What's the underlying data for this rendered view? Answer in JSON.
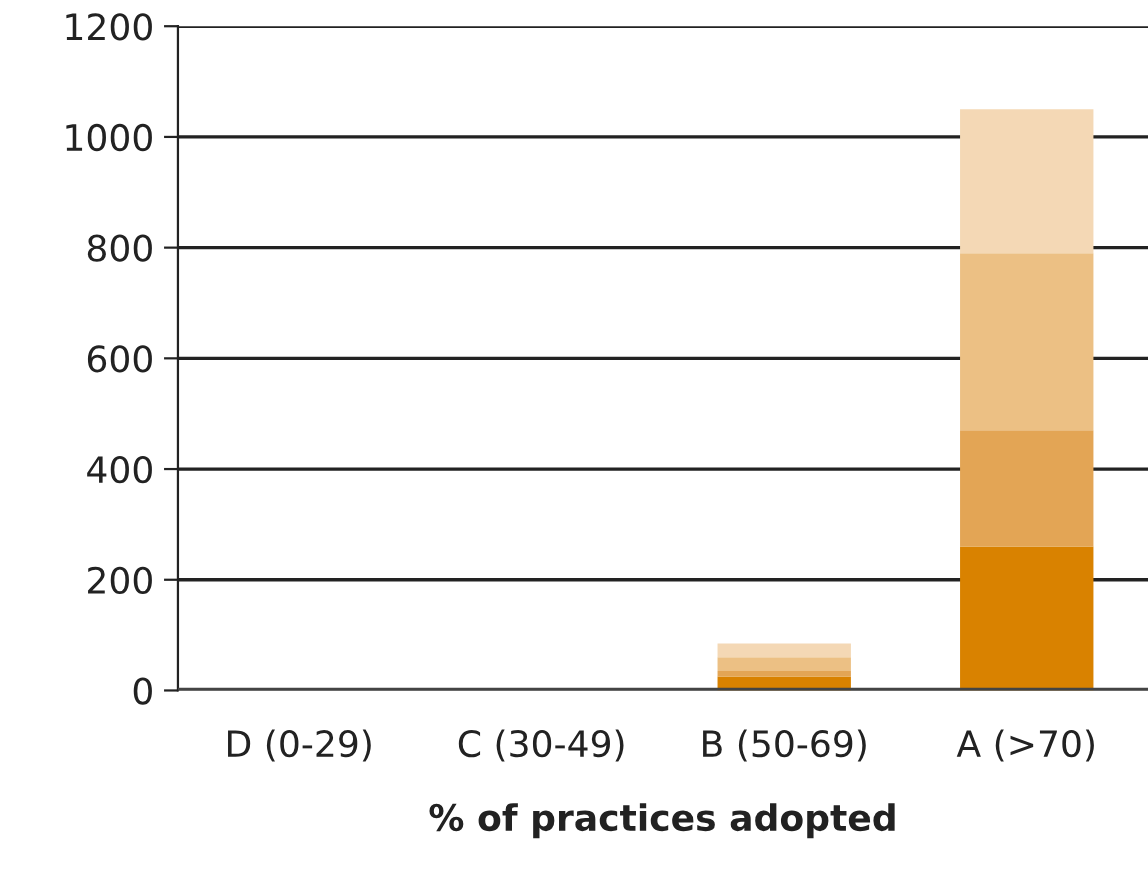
{
  "chart_data": {
    "type": "bar",
    "stacked": true,
    "xlabel": "% of practices adopted",
    "categories": [
      "D (0-29)",
      "C (30-49)",
      "B (50-69)",
      "A (>70)"
    ],
    "series": [
      {
        "color": "#d98200",
        "values": [
          0,
          0,
          25,
          260
        ]
      },
      {
        "color": "#e3a555",
        "values": [
          0,
          0,
          10,
          210
        ]
      },
      {
        "color": "#ecc084",
        "values": [
          0,
          0,
          25,
          320
        ]
      },
      {
        "color": "#f4d8b5",
        "values": [
          0,
          0,
          25,
          260
        ]
      }
    ],
    "ylim": [
      0,
      1200
    ],
    "yticks": [
      0,
      200,
      400,
      600,
      800,
      1000,
      1200
    ],
    "grid": "y"
  }
}
